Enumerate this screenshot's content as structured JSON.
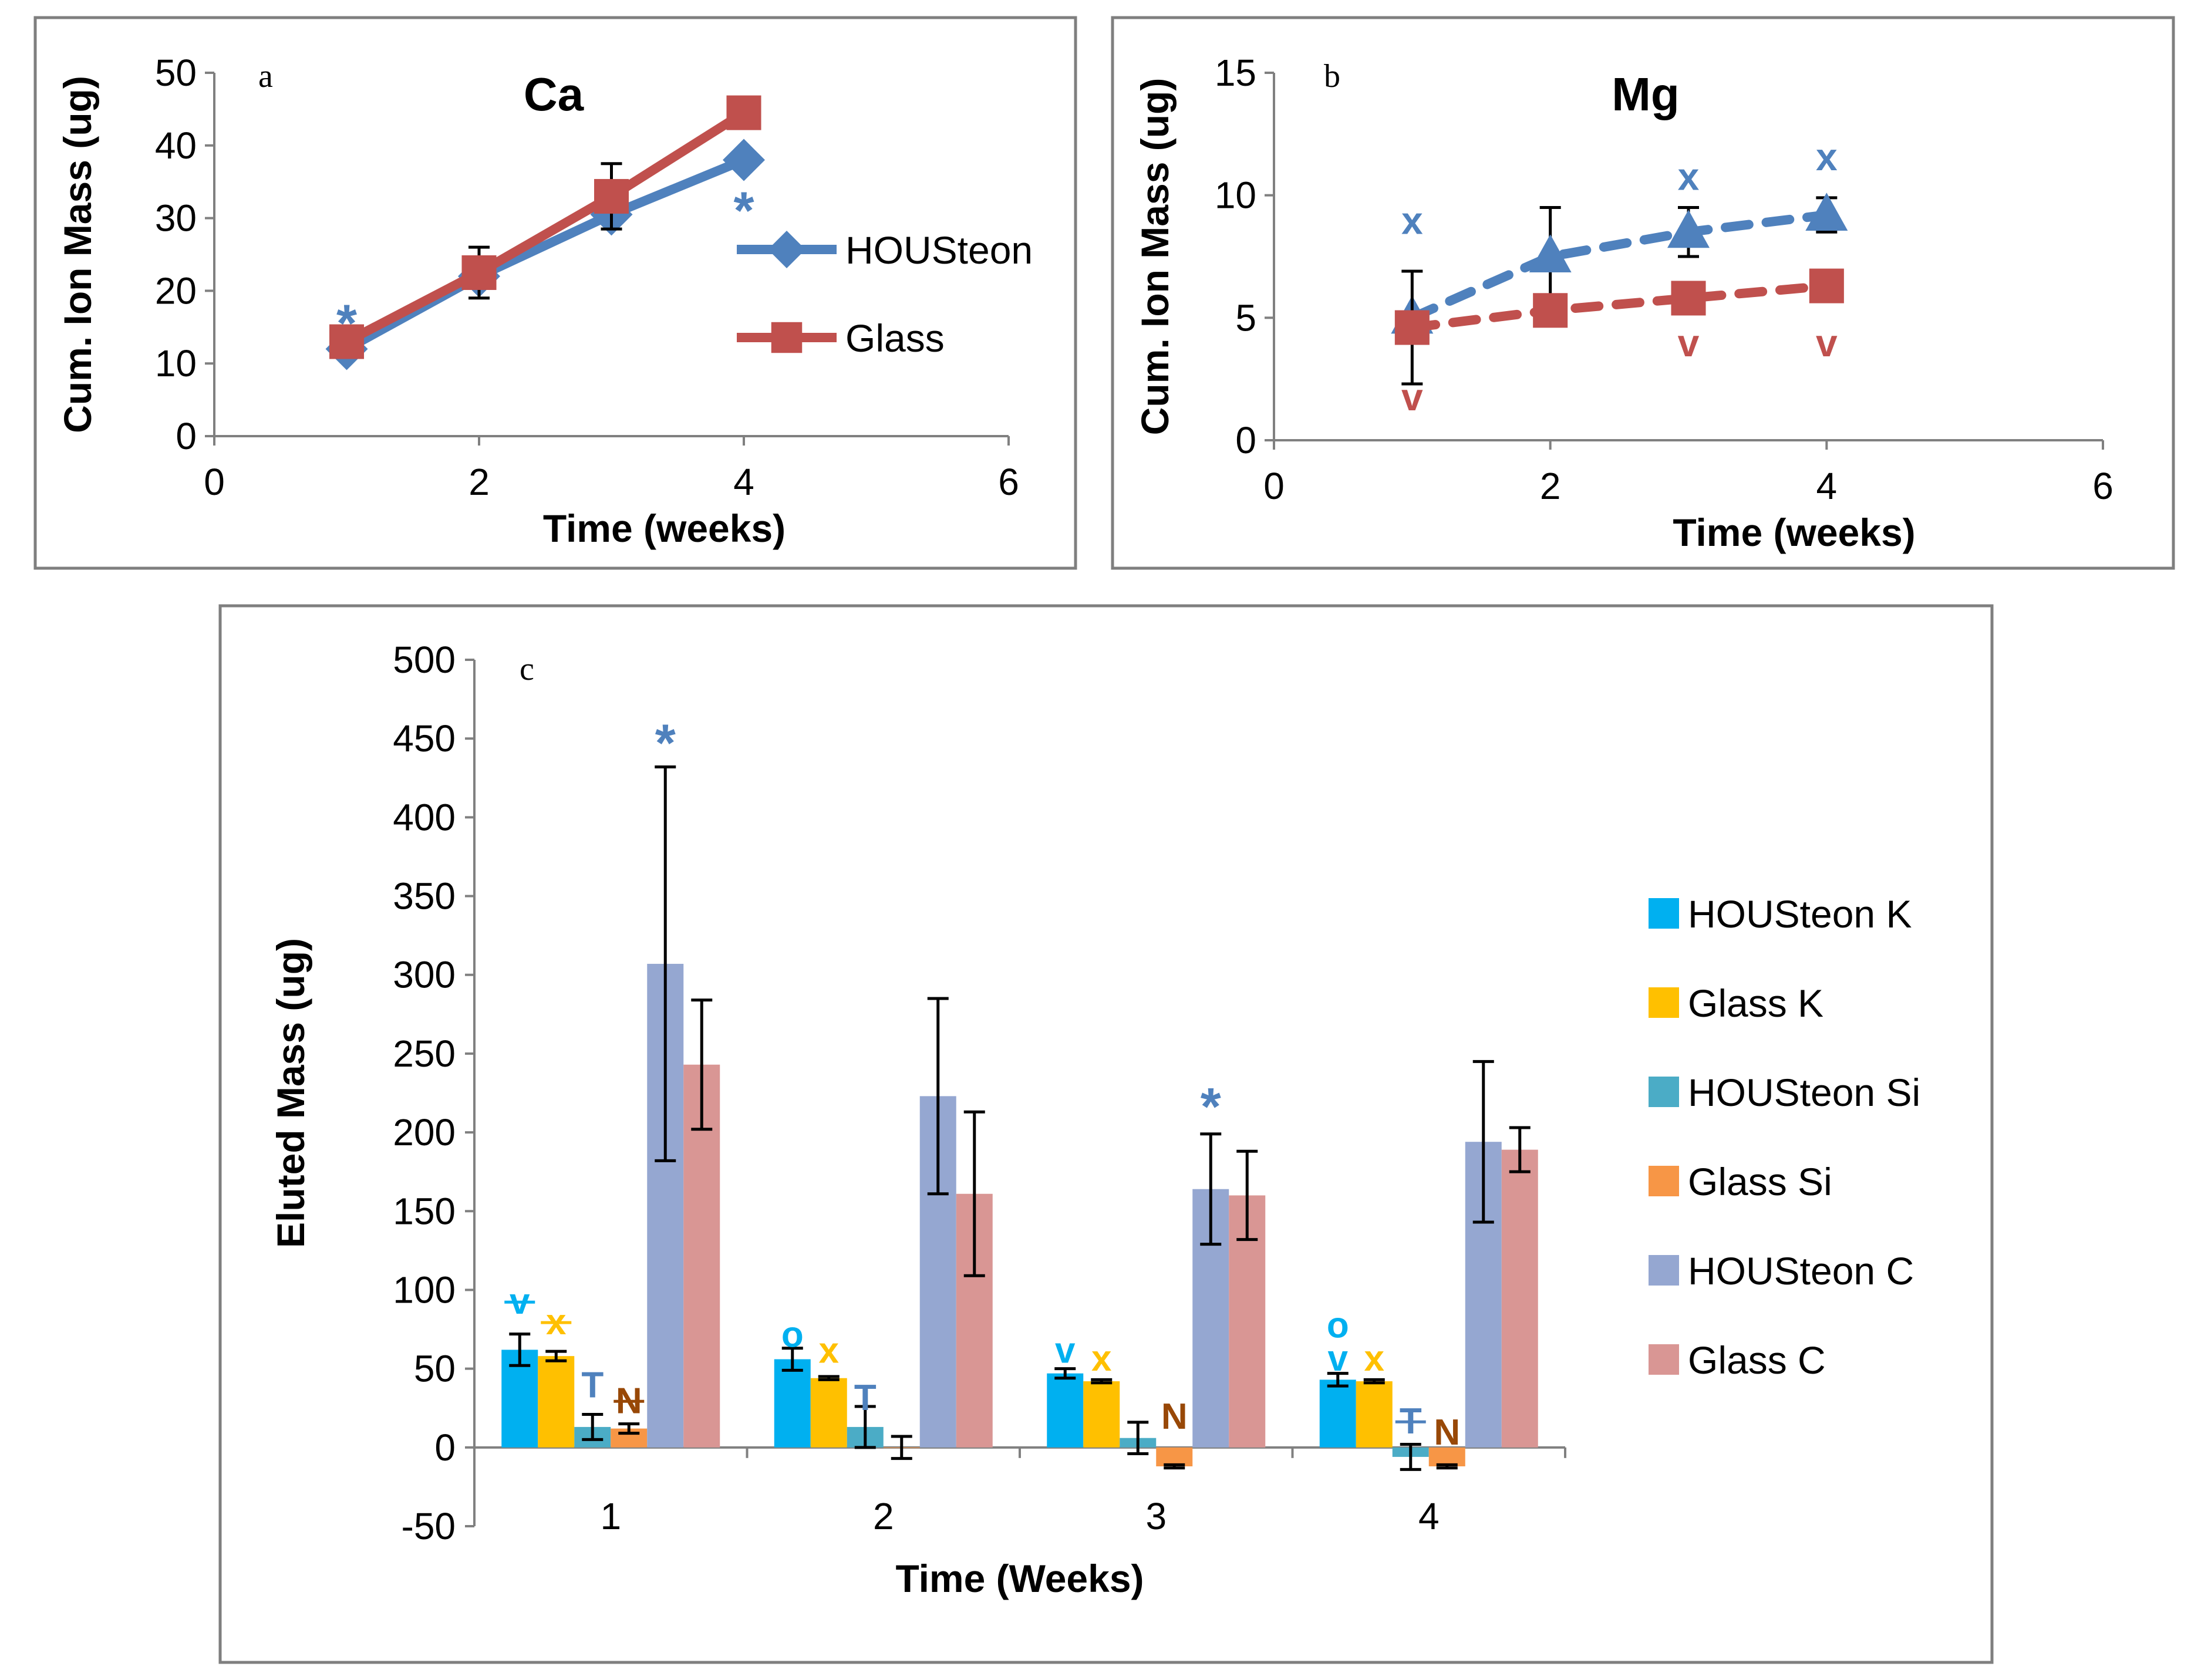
{
  "chart_data": [
    {
      "panel": "a",
      "type": "line",
      "title": "Ca",
      "xlabel": "Time (weeks)",
      "ylabel": "Cum. Ion Mass (ug)",
      "xlim": [
        0,
        6
      ],
      "ylim": [
        0,
        50
      ],
      "xticks": [
        "0",
        "2",
        "4",
        "6"
      ],
      "yticks": [
        "0",
        "10",
        "20",
        "30",
        "40",
        "50"
      ],
      "legend_position": "right",
      "series": [
        {
          "name": "HOUSteon",
          "color": "#4f81bd",
          "marker": "diamond",
          "dashed": false,
          "x": [
            1,
            2,
            3,
            4
          ],
          "y": [
            12,
            22,
            30.5,
            38
          ],
          "err": [
            0,
            0,
            0,
            0
          ]
        },
        {
          "name": "Glass",
          "color": "#c0504d",
          "marker": "square",
          "dashed": false,
          "x": [
            1,
            2,
            3,
            4
          ],
          "y": [
            13,
            22.5,
            33,
            44.5
          ],
          "err": [
            0,
            3.5,
            4.5,
            0
          ]
        }
      ],
      "annotations": [
        {
          "text": "*",
          "x": 1,
          "y": 15,
          "color": "#4f81bd"
        },
        {
          "text": "*",
          "x": 4,
          "y": 30.5,
          "color": "#4f81bd"
        }
      ]
    },
    {
      "panel": "b",
      "type": "line",
      "title": "Mg",
      "xlabel": "Time (weeks)",
      "ylabel": "Cum. Ion Mass (ug)",
      "xlim": [
        0,
        6
      ],
      "ylim": [
        0,
        15
      ],
      "xticks": [
        "0",
        "2",
        "4",
        "6"
      ],
      "yticks": [
        "0",
        "5",
        "10",
        "15"
      ],
      "series": [
        {
          "name": "HOUSteon",
          "color": "#4f81bd",
          "marker": "triangle",
          "dashed": true,
          "x": [
            1,
            2,
            3,
            4
          ],
          "y": [
            5,
            7.5,
            8.5,
            9.2
          ],
          "err": [
            0,
            2,
            1,
            0.7
          ]
        },
        {
          "name": "Glass",
          "color": "#c0504d",
          "marker": "square",
          "dashed": true,
          "x": [
            1,
            2,
            3,
            4
          ],
          "y": [
            4.6,
            5.3,
            5.8,
            6.3
          ],
          "err": [
            2.3,
            0,
            0,
            0
          ]
        }
      ],
      "annotations": [
        {
          "text": "x",
          "x": 1,
          "y": 9,
          "color": "#4f81bd"
        },
        {
          "text": "x",
          "x": 3,
          "y": 10.8,
          "color": "#4f81bd"
        },
        {
          "text": "x",
          "x": 4,
          "y": 11.6,
          "color": "#4f81bd"
        },
        {
          "text": "v",
          "x": 1,
          "y": 1.8,
          "color": "#c0504d"
        },
        {
          "text": "v",
          "x": 3,
          "y": 4,
          "color": "#c0504d"
        },
        {
          "text": "v",
          "x": 4,
          "y": 4,
          "color": "#c0504d"
        }
      ]
    },
    {
      "panel": "c",
      "type": "bar",
      "xlabel": "Time (Weeks)",
      "ylabel": "Eluted Mass (ug)",
      "categories": [
        "1",
        "2",
        "3",
        "4"
      ],
      "ylim": [
        -50,
        500
      ],
      "yticks": [
        "-50",
        "0",
        "50",
        "100",
        "150",
        "200",
        "250",
        "300",
        "350",
        "400",
        "450",
        "500"
      ],
      "legend_position": "right",
      "series": [
        {
          "name": "HOUSteon K",
          "color": "#00b0f0",
          "values": [
            62,
            56,
            47,
            43
          ],
          "err": [
            10,
            7,
            3,
            4
          ]
        },
        {
          "name": "Glass K",
          "color": "#ffc000",
          "values": [
            58,
            44,
            42,
            42
          ],
          "err": [
            3,
            1,
            1,
            1
          ]
        },
        {
          "name": "HOUSteon Si",
          "color": "#4bacc6",
          "values": [
            13,
            13,
            6,
            -6
          ],
          "err": [
            8,
            13,
            10,
            8
          ]
        },
        {
          "name": "Glass Si",
          "color": "#f79646",
          "values": [
            12,
            0,
            -12,
            -12
          ],
          "err": [
            3,
            7,
            1,
            1
          ]
        },
        {
          "name": "HOUSteon C",
          "color": "#95a7d1",
          "values": [
            307,
            223,
            164,
            194
          ],
          "err": [
            125,
            62,
            35,
            51
          ]
        },
        {
          "name": "Glass C",
          "color": "#d99694",
          "values": [
            243,
            161,
            160,
            189
          ],
          "err": [
            41,
            52,
            28,
            14
          ]
        }
      ],
      "annotations": [
        {
          "text": "v",
          "category": 0,
          "series": 0,
          "y": 93,
          "color": "#00b0f0",
          "strike": true
        },
        {
          "text": "x",
          "category": 0,
          "series": 1,
          "y": 80,
          "color": "#ffc000",
          "strike": true
        },
        {
          "text": "T",
          "category": 0,
          "series": 2,
          "y": 40,
          "color": "#4f81bd",
          "strike": false
        },
        {
          "text": "N",
          "category": 0,
          "series": 3,
          "y": 30,
          "color": "#984807",
          "strike": true
        },
        {
          "text": "*",
          "category": 0,
          "series": 4,
          "y": 444,
          "color": "#4f81bd",
          "strike": false
        },
        {
          "text": "o",
          "category": 1,
          "series": 0,
          "y": 72,
          "color": "#00b0f0",
          "strike": false
        },
        {
          "text": "x",
          "category1": 1,
          "category": 1,
          "series": 1,
          "y": 62,
          "color": "#ffc000",
          "strike": false
        },
        {
          "text": "T",
          "category": 1,
          "series": 2,
          "y": 32,
          "color": "#4f81bd",
          "strike": false
        },
        {
          "text": "v",
          "category": 2,
          "series": 0,
          "y": 62,
          "color": "#00b0f0",
          "strike": false
        },
        {
          "text": "x",
          "category": 2,
          "series": 1,
          "y": 57,
          "color": "#ffc000",
          "strike": false
        },
        {
          "text": "N",
          "category": 2,
          "series": 3,
          "y": 20,
          "color": "#984807",
          "strike": false
        },
        {
          "text": "*",
          "category": 2,
          "series": 4,
          "y": 213,
          "color": "#4f81bd",
          "strike": false
        },
        {
          "text": "o",
          "category": 3,
          "series": 0,
          "y": 78,
          "color": "#00b0f0",
          "strike": false
        },
        {
          "text": "v",
          "category": 3,
          "series": 0,
          "y": 57,
          "color": "#00b0f0",
          "strike": false
        },
        {
          "text": "x",
          "category": 3,
          "series": 1,
          "y": 57,
          "color": "#ffc000",
          "strike": false
        },
        {
          "text": "T",
          "category": 3,
          "series": 2,
          "y": 17,
          "color": "#4f81bd",
          "strike": true
        },
        {
          "text": "N",
          "category": 3,
          "series": 3,
          "y": 10,
          "color": "#984807",
          "strike": false
        }
      ]
    }
  ]
}
